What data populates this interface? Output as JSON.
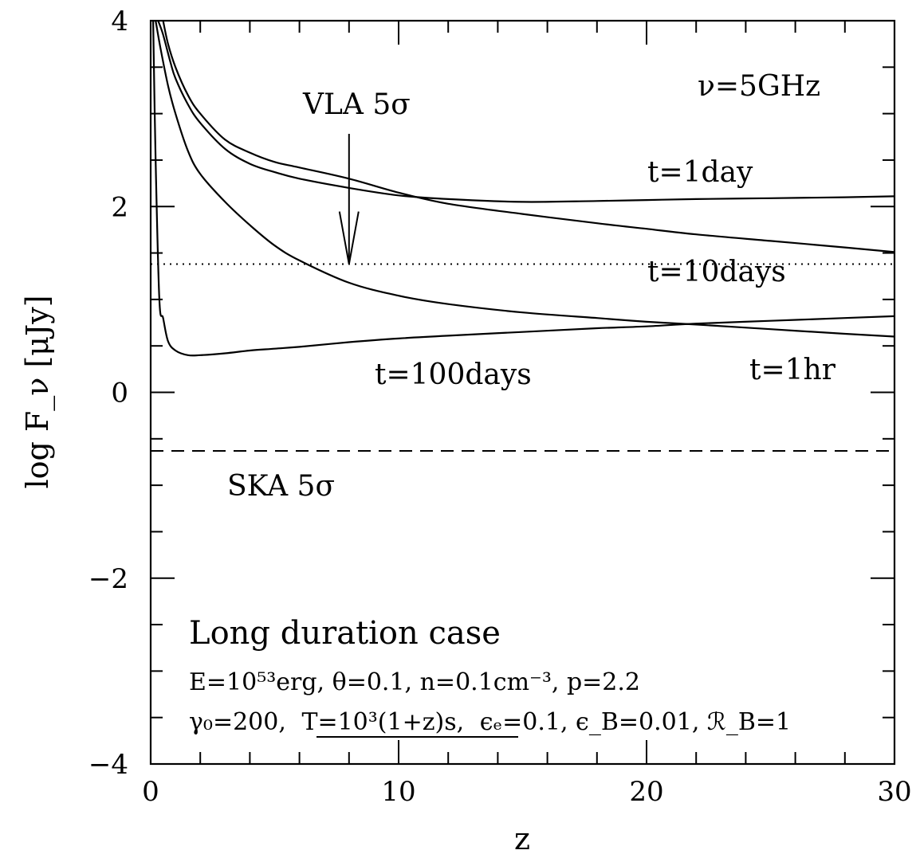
{
  "chart_data": {
    "type": "line",
    "title": "",
    "xlabel": "z",
    "ylabel": "log F_ν [μJy]",
    "xlim": [
      0,
      30
    ],
    "ylim": [
      -4,
      4
    ],
    "x_ticks": [
      0,
      10,
      20,
      30
    ],
    "y_ticks": [
      -4,
      -2,
      0,
      2,
      4
    ],
    "x_tick_labels": [
      "0",
      "10",
      "20",
      "30"
    ],
    "y_tick_labels": [
      "−4",
      "−2",
      "0",
      "2",
      "4"
    ],
    "x_minor_step": 2,
    "y_minor_step": 0.5,
    "grid": false,
    "series": [
      {
        "name": "t=1hr",
        "x": [
          0.2,
          0.4,
          0.7,
          1,
          1.5,
          2,
          3,
          4,
          5,
          6,
          8,
          10,
          12,
          15,
          18,
          20,
          22,
          25,
          28,
          30
        ],
        "y": [
          4.0,
          3.7,
          3.3,
          3.0,
          2.6,
          2.35,
          2.05,
          1.8,
          1.58,
          1.42,
          1.18,
          1.04,
          0.95,
          0.86,
          0.8,
          0.76,
          0.73,
          0.68,
          0.63,
          0.6
        ]
      },
      {
        "name": "t=1day",
        "x": [
          0.3,
          0.5,
          0.8,
          1,
          1.5,
          2,
          3,
          4,
          5,
          6,
          8,
          10,
          12,
          15,
          18,
          20,
          22,
          25,
          28,
          30
        ],
        "y": [
          4.0,
          3.85,
          3.55,
          3.38,
          3.1,
          2.9,
          2.62,
          2.46,
          2.37,
          2.3,
          2.2,
          2.12,
          2.08,
          2.05,
          2.06,
          2.07,
          2.08,
          2.09,
          2.1,
          2.11
        ]
      },
      {
        "name": "t=10days",
        "x": [
          0.5,
          0.7,
          1,
          1.5,
          2,
          3,
          4,
          5,
          6,
          8,
          10,
          12,
          15,
          18,
          20,
          22,
          25,
          28,
          30
        ],
        "y": [
          4.0,
          3.75,
          3.5,
          3.2,
          3.0,
          2.72,
          2.58,
          2.48,
          2.42,
          2.3,
          2.15,
          2.03,
          1.92,
          1.82,
          1.76,
          1.7,
          1.63,
          1.56,
          1.51
        ]
      },
      {
        "name": "t=100days",
        "x": [
          0.1,
          0.2,
          0.35,
          0.5,
          0.7,
          1,
          1.5,
          2,
          3,
          4,
          5,
          6,
          8,
          10,
          12,
          15,
          18,
          20,
          22,
          25,
          28,
          30
        ],
        "y": [
          4.0,
          2.5,
          1.0,
          0.8,
          0.55,
          0.45,
          0.4,
          0.4,
          0.42,
          0.45,
          0.47,
          0.49,
          0.54,
          0.58,
          0.61,
          0.65,
          0.69,
          0.71,
          0.74,
          0.77,
          0.8,
          0.82
        ]
      }
    ],
    "reference_lines": [
      {
        "name": "VLA 5σ",
        "y": 1.38,
        "style": "dotted"
      },
      {
        "name": "SKA 5σ",
        "y": -0.63,
        "style": "dashed"
      }
    ],
    "annotations": {
      "nu": "ν=5GHz",
      "vla": "VLA 5σ",
      "ska": "SKA 5σ",
      "t1day": "t=1day",
      "t10days": "t=10days",
      "t100days": "t=100days",
      "t1hr": "t=1hr",
      "case": "Long duration case",
      "params1": "E=10⁵³erg, θ=0.1, n=0.1cm⁻³, p=2.2",
      "params2_a": "γ₀=200,",
      "params2_b": "T=10³(1+z)s,",
      "params2_c": "ϵₑ=0.1, ϵ_B=0.01, ℛ_B=1"
    },
    "vla_arrow_x": 8
  }
}
